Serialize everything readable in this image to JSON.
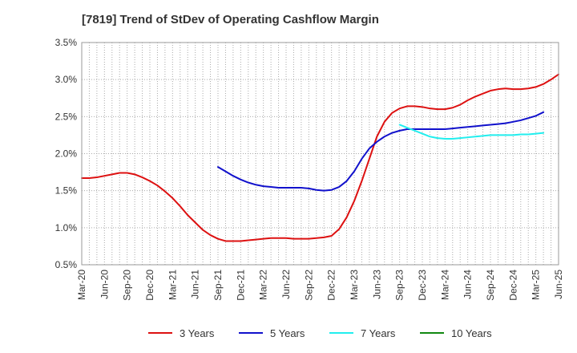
{
  "chart_data": {
    "type": "line",
    "title": "[7819]  Trend of StDev of Operating Cashflow Margin",
    "xlabel": "",
    "ylabel": "",
    "x_ticks": [
      "Mar-20",
      "Jun-20",
      "Sep-20",
      "Dec-20",
      "Mar-21",
      "Jun-21",
      "Sep-21",
      "Dec-21",
      "Mar-22",
      "Jun-22",
      "Sep-22",
      "Dec-22",
      "Mar-23",
      "Jun-23",
      "Sep-23",
      "Dec-23",
      "Mar-24",
      "Jun-24",
      "Sep-24",
      "Dec-24",
      "Mar-25",
      "Jun-25"
    ],
    "y_ticks": [
      "0.5%",
      "1.0%",
      "1.5%",
      "2.0%",
      "2.5%",
      "3.0%",
      "3.5%"
    ],
    "ylim": [
      0.5,
      3.5
    ],
    "y_unit": "%",
    "grid": true,
    "legend_position": "bottom",
    "series": [
      {
        "name": "3 Years",
        "color": "#dd1111",
        "start_index": 0,
        "values": [
          1.67,
          1.67,
          1.68,
          1.7,
          1.72,
          1.74,
          1.74,
          1.72,
          1.68,
          1.63,
          1.57,
          1.49,
          1.4,
          1.29,
          1.17,
          1.07,
          0.97,
          0.9,
          0.85,
          0.82,
          0.82,
          0.82,
          0.83,
          0.84,
          0.85,
          0.86,
          0.86,
          0.86,
          0.85,
          0.85,
          0.85,
          0.86,
          0.87,
          0.89,
          0.98,
          1.14,
          1.36,
          1.63,
          1.93,
          2.23,
          2.43,
          2.55,
          2.61,
          2.64,
          2.64,
          2.63,
          2.61,
          2.6,
          2.6,
          2.62,
          2.66,
          2.72,
          2.77,
          2.81,
          2.85,
          2.87,
          2.88,
          2.87,
          2.87,
          2.88,
          2.9,
          2.94,
          3.0,
          3.07
        ]
      },
      {
        "name": "5 Years",
        "color": "#1111cc",
        "start_index": 18,
        "values": [
          1.82,
          1.76,
          1.7,
          1.65,
          1.61,
          1.58,
          1.56,
          1.55,
          1.54,
          1.54,
          1.54,
          1.54,
          1.53,
          1.51,
          1.5,
          1.51,
          1.55,
          1.63,
          1.76,
          1.93,
          2.07,
          2.16,
          2.23,
          2.28,
          2.31,
          2.33,
          2.33,
          2.33,
          2.33,
          2.33,
          2.33,
          2.34,
          2.35,
          2.36,
          2.37,
          2.38,
          2.39,
          2.4,
          2.41,
          2.43,
          2.45,
          2.48,
          2.51,
          2.56
        ]
      },
      {
        "name": "7 Years",
        "color": "#22eeee",
        "start_index": 42,
        "values": [
          2.39,
          2.35,
          2.31,
          2.27,
          2.23,
          2.21,
          2.2,
          2.2,
          2.21,
          2.22,
          2.23,
          2.24,
          2.25,
          2.25,
          2.25,
          2.25,
          2.26,
          2.26,
          2.27,
          2.28
        ]
      },
      {
        "name": "10 Years",
        "color": "#118811",
        "start_index": 0,
        "values": []
      }
    ]
  }
}
